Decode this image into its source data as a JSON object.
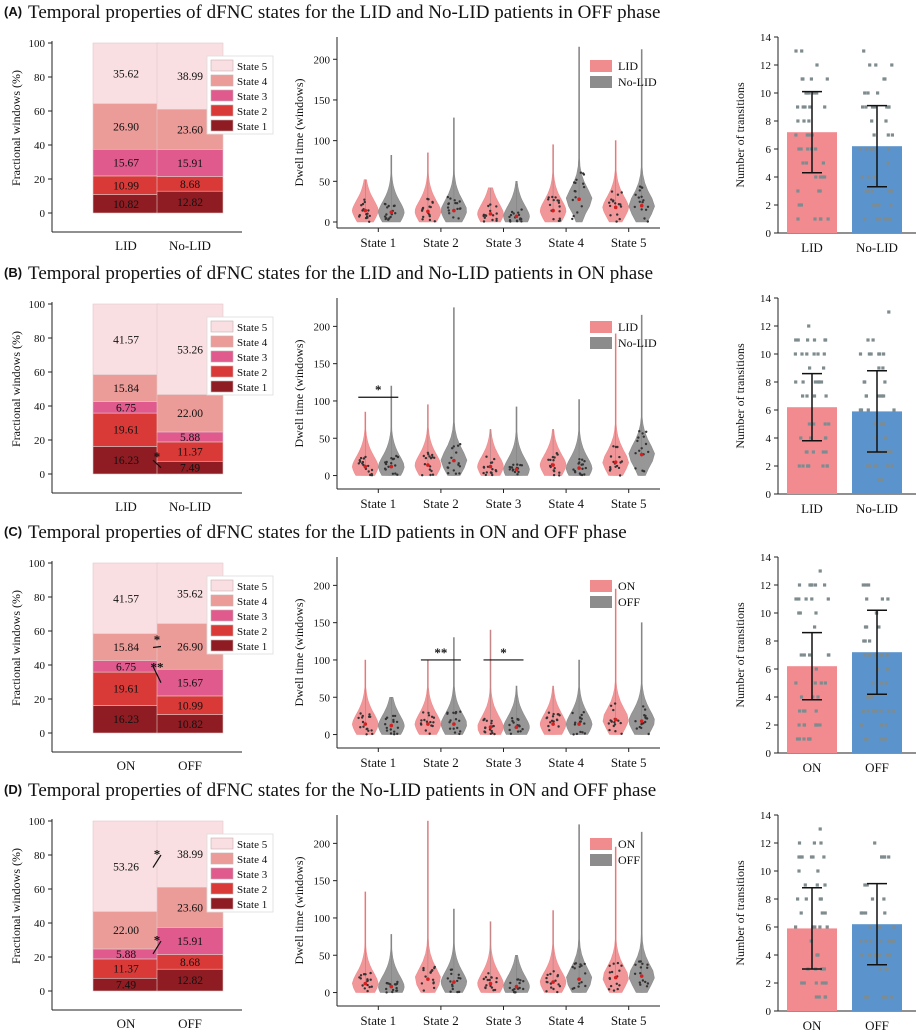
{
  "chart_data": [
    {
      "panel": "(A)",
      "title": "Temporal properties of dFNC states for the LID and No-LID patients in OFF phase",
      "fractional": {
        "type": "bar",
        "stacked": true,
        "ylabel": "Fractional windows (%)",
        "ylim": [
          0,
          100
        ],
        "yticks": [
          "0",
          "20",
          "40",
          "60",
          "80",
          "100"
        ],
        "categories": [
          "LID",
          "No-LID"
        ],
        "series": [
          {
            "name": "State 1",
            "values": [
              10.82,
              12.82
            ],
            "labels": [
              "10.82",
              "12.82"
            ],
            "color": "#8e1c22"
          },
          {
            "name": "State 2",
            "values": [
              10.99,
              8.68
            ],
            "labels": [
              "10.99",
              "8.68"
            ],
            "color": "#d93a38"
          },
          {
            "name": "State 3",
            "values": [
              15.67,
              15.91
            ],
            "labels": [
              "15.67",
              "15.91"
            ],
            "color": "#e05a8e"
          },
          {
            "name": "State 4",
            "values": [
              26.9,
              23.6
            ],
            "labels": [
              "26.90",
              "23.60"
            ],
            "color": "#ec9c98"
          },
          {
            "name": "State 5",
            "values": [
              35.62,
              38.99
            ],
            "labels": [
              "35.62",
              "38.99"
            ],
            "color": "#f9dfe1"
          }
        ],
        "legend": [
          "State 5",
          "State 4",
          "State 3",
          "State 2",
          "State 1"
        ],
        "annotations": []
      },
      "dwell": {
        "type": "violin",
        "ylabel": "Dwell time (windows)",
        "ylim": [
          0,
          220
        ],
        "yticks": [
          "0",
          "50",
          "100",
          "150",
          "200"
        ],
        "categories": [
          "State 1",
          "State 2",
          "State 3",
          "State 4",
          "State 5"
        ],
        "legend": [
          "LID",
          "No-LID"
        ],
        "series": [
          {
            "name": "LID",
            "color": "#f08c8e",
            "max": [
              52,
              85,
              42,
              95,
              100
            ],
            "median": [
              14,
              13,
              10,
              14,
              18
            ]
          },
          {
            "name": "No-LID",
            "color": "#8c8c8c",
            "max": [
              82,
              128,
              50,
              215,
              212
            ],
            "median": [
              12,
              14,
              7,
              28,
              20
            ]
          }
        ],
        "annotations": []
      },
      "transitions": {
        "type": "bar",
        "ylabel": "Number of transitions",
        "ylim": [
          0,
          14
        ],
        "yticks": [
          "0",
          "2",
          "4",
          "6",
          "8",
          "10",
          "12",
          "14"
        ],
        "categories": [
          "LID",
          "No-LID"
        ],
        "values": [
          7.2,
          6.2
        ],
        "errors": [
          2.9,
          2.9
        ],
        "colors": [
          "#f28b90",
          "#5b93cc"
        ],
        "annotations": []
      }
    },
    {
      "panel": "(B)",
      "title": "Temporal properties of dFNC states for the LID and No-LID patients in ON phase",
      "fractional": {
        "type": "bar",
        "stacked": true,
        "ylabel": "Fractional windows (%)",
        "ylim": [
          0,
          100
        ],
        "yticks": [
          "0",
          "20",
          "40",
          "60",
          "80",
          "100"
        ],
        "categories": [
          "LID",
          "No-LID"
        ],
        "series": [
          {
            "name": "State 1",
            "values": [
              16.23,
              7.49
            ],
            "labels": [
              "16.23",
              "7.49"
            ],
            "color": "#8e1c22"
          },
          {
            "name": "State 2",
            "values": [
              19.61,
              11.37
            ],
            "labels": [
              "19.61",
              "11.37"
            ],
            "color": "#d93a38"
          },
          {
            "name": "State 3",
            "values": [
              6.75,
              5.88
            ],
            "labels": [
              "6.75",
              "5.88"
            ],
            "color": "#e05a8e"
          },
          {
            "name": "State 4",
            "values": [
              15.84,
              22.0
            ],
            "labels": [
              "15.84",
              "22.00"
            ],
            "color": "#ec9c98"
          },
          {
            "name": "State 5",
            "values": [
              41.57,
              53.26
            ],
            "labels": [
              "41.57",
              "53.26"
            ],
            "color": "#f9dfe1"
          }
        ],
        "legend": [
          "State 5",
          "State 4",
          "State 3",
          "State 2",
          "State 1"
        ],
        "annotations": [
          {
            "text": "*",
            "from_bar": 0,
            "from_value": 8.1,
            "to_bar": 1,
            "to_value": 3.7
          }
        ]
      },
      "dwell": {
        "type": "violin",
        "ylabel": "Dwell time (windows)",
        "ylim": [
          -10,
          230
        ],
        "yticks": [
          "0",
          "50",
          "100",
          "150",
          "200"
        ],
        "categories": [
          "State 1",
          "State 2",
          "State 3",
          "State 4",
          "State 5"
        ],
        "legend": [
          "LID",
          "No-LID"
        ],
        "series": [
          {
            "name": "LID",
            "color": "#f08c8e",
            "max": [
              85,
              95,
              62,
              62,
              190
            ],
            "median": [
              12,
              14,
              12,
              14,
              18
            ]
          },
          {
            "name": "No-LID",
            "color": "#8c8c8c",
            "max": [
              120,
              225,
              92,
              102,
              215
            ],
            "median": [
              12,
              20,
              8,
              10,
              28
            ]
          }
        ],
        "annotations": [
          {
            "text": "*",
            "state": 0,
            "value": 105
          }
        ]
      },
      "transitions": {
        "type": "bar",
        "ylabel": "Number of transitions",
        "ylim": [
          0,
          14
        ],
        "yticks": [
          "0",
          "2",
          "4",
          "6",
          "8",
          "10",
          "12",
          "14"
        ],
        "categories": [
          "LID",
          "No-LID"
        ],
        "values": [
          6.2,
          5.9
        ],
        "errors": [
          2.4,
          2.9
        ],
        "colors": [
          "#f28b90",
          "#5b93cc"
        ],
        "annotations": []
      }
    },
    {
      "panel": "(C)",
      "title": "Temporal properties of dFNC states for the LID patients in ON and OFF phase",
      "fractional": {
        "type": "bar",
        "stacked": true,
        "ylabel": "Fractional windows (%)",
        "ylim": [
          0,
          100
        ],
        "yticks": [
          "0",
          "20",
          "40",
          "60",
          "80",
          "100"
        ],
        "categories": [
          "ON",
          "OFF"
        ],
        "series": [
          {
            "name": "State 1",
            "values": [
              16.23,
              10.82
            ],
            "labels": [
              "16.23",
              "10.82"
            ],
            "color": "#8e1c22"
          },
          {
            "name": "State 2",
            "values": [
              19.61,
              10.99
            ],
            "labels": [
              "19.61",
              "10.99"
            ],
            "color": "#d93a38"
          },
          {
            "name": "State 3",
            "values": [
              6.75,
              15.67
            ],
            "labels": [
              "6.75",
              "15.67"
            ],
            "color": "#e05a8e"
          },
          {
            "name": "State 4",
            "values": [
              15.84,
              26.9
            ],
            "labels": [
              "15.84",
              "26.90"
            ],
            "color": "#ec9c98"
          },
          {
            "name": "State 5",
            "values": [
              41.57,
              35.62
            ],
            "labels": [
              "41.57",
              "35.62"
            ],
            "color": "#f9dfe1"
          }
        ],
        "legend": [
          "State 5",
          "State 4",
          "State 3",
          "State 2",
          "State 1"
        ],
        "annotations": [
          {
            "text": "*",
            "from_bar": 0,
            "from_value": 50.3,
            "to_bar": 1,
            "to_value": 50.9
          },
          {
            "text": "**",
            "from_bar": 0,
            "from_value": 39.2,
            "to_bar": 1,
            "to_value": 29.6
          }
        ]
      },
      "dwell": {
        "type": "violin",
        "ylabel": "Dwell time (windows)",
        "ylim": [
          -10,
          230
        ],
        "yticks": [
          "0",
          "50",
          "100",
          "150",
          "200"
        ],
        "categories": [
          "State 1",
          "State 2",
          "State 3",
          "State 4",
          "State 5"
        ],
        "legend": [
          "ON",
          "OFF"
        ],
        "series": [
          {
            "name": "ON",
            "color": "#f08c8e",
            "max": [
              100,
              100,
              140,
              65,
              195
            ],
            "median": [
              14,
              14,
              10,
              14,
              20
            ]
          },
          {
            "name": "OFF",
            "color": "#8c8c8c",
            "max": [
              50,
              130,
              65,
              100,
              150
            ],
            "median": [
              12,
              14,
              10,
              14,
              18
            ]
          }
        ],
        "annotations": [
          {
            "text": "**",
            "state": 1,
            "value": 100
          },
          {
            "text": "*",
            "state": 2,
            "value": 100
          }
        ]
      },
      "transitions": {
        "type": "bar",
        "ylabel": "Number of transitions",
        "ylim": [
          0,
          14
        ],
        "yticks": [
          "0",
          "2",
          "4",
          "6",
          "8",
          "10",
          "12",
          "14"
        ],
        "categories": [
          "ON",
          "OFF"
        ],
        "values": [
          6.2,
          7.2
        ],
        "errors": [
          2.4,
          3.0
        ],
        "colors": [
          "#f28b90",
          "#5b93cc"
        ],
        "annotations": []
      }
    },
    {
      "panel": "(D)",
      "title": "Temporal properties of dFNC states for the No-LID patients in ON and OFF phase",
      "fractional": {
        "type": "bar",
        "stacked": true,
        "ylabel": "Fractional windows (%)",
        "ylim": [
          0,
          100
        ],
        "yticks": [
          "0",
          "20",
          "40",
          "60",
          "80",
          "100"
        ],
        "categories": [
          "ON",
          "OFF"
        ],
        "series": [
          {
            "name": "State 1",
            "values": [
              7.49,
              12.82
            ],
            "labels": [
              "7.49",
              "12.82"
            ],
            "color": "#8e1c22"
          },
          {
            "name": "State 2",
            "values": [
              11.37,
              8.68
            ],
            "labels": [
              "11.37",
              "8.68"
            ],
            "color": "#d93a38"
          },
          {
            "name": "State 3",
            "values": [
              5.88,
              15.91
            ],
            "labels": [
              "5.88",
              "15.91"
            ],
            "color": "#e05a8e"
          },
          {
            "name": "State 4",
            "values": [
              22.0,
              23.6
            ],
            "labels": [
              "22.00",
              "23.60"
            ],
            "color": "#ec9c98"
          },
          {
            "name": "State 5",
            "values": [
              53.26,
              38.99
            ],
            "labels": [
              "53.26",
              "38.99"
            ],
            "color": "#f9dfe1"
          }
        ],
        "legend": [
          "State 5",
          "State 4",
          "State 3",
          "State 2",
          "State 1"
        ],
        "annotations": [
          {
            "text": "*",
            "from_bar": 0,
            "from_value": 72.6,
            "to_bar": 1,
            "to_value": 80.0
          },
          {
            "text": "*",
            "from_bar": 0,
            "from_value": 21.8,
            "to_bar": 1,
            "to_value": 29.4
          }
        ]
      },
      "dwell": {
        "type": "violin",
        "ylabel": "Dwell time (windows)",
        "ylim": [
          -10,
          230
        ],
        "yticks": [
          "0",
          "50",
          "100",
          "150",
          "200"
        ],
        "categories": [
          "State 1",
          "State 2",
          "State 3",
          "State 4",
          "State 5"
        ],
        "legend": [
          "ON",
          "OFF"
        ],
        "series": [
          {
            "name": "ON",
            "color": "#f08c8e",
            "max": [
              135,
              230,
              95,
              110,
              195
            ],
            "median": [
              12,
              18,
              12,
              14,
              20
            ]
          },
          {
            "name": "OFF",
            "color": "#8c8c8c",
            "max": [
              78,
              112,
              50,
              225,
              215
            ],
            "median": [
              8,
              14,
              8,
              18,
              22
            ]
          }
        ],
        "annotations": []
      },
      "transitions": {
        "type": "bar",
        "ylabel": "Number of transitions",
        "ylim": [
          0,
          14
        ],
        "yticks": [
          "0",
          "2",
          "4",
          "6",
          "8",
          "10",
          "12",
          "14"
        ],
        "categories": [
          "ON",
          "OFF"
        ],
        "values": [
          5.9,
          6.2
        ],
        "errors": [
          2.9,
          2.9
        ],
        "colors": [
          "#f28b90",
          "#5b93cc"
        ],
        "annotations": []
      }
    }
  ]
}
